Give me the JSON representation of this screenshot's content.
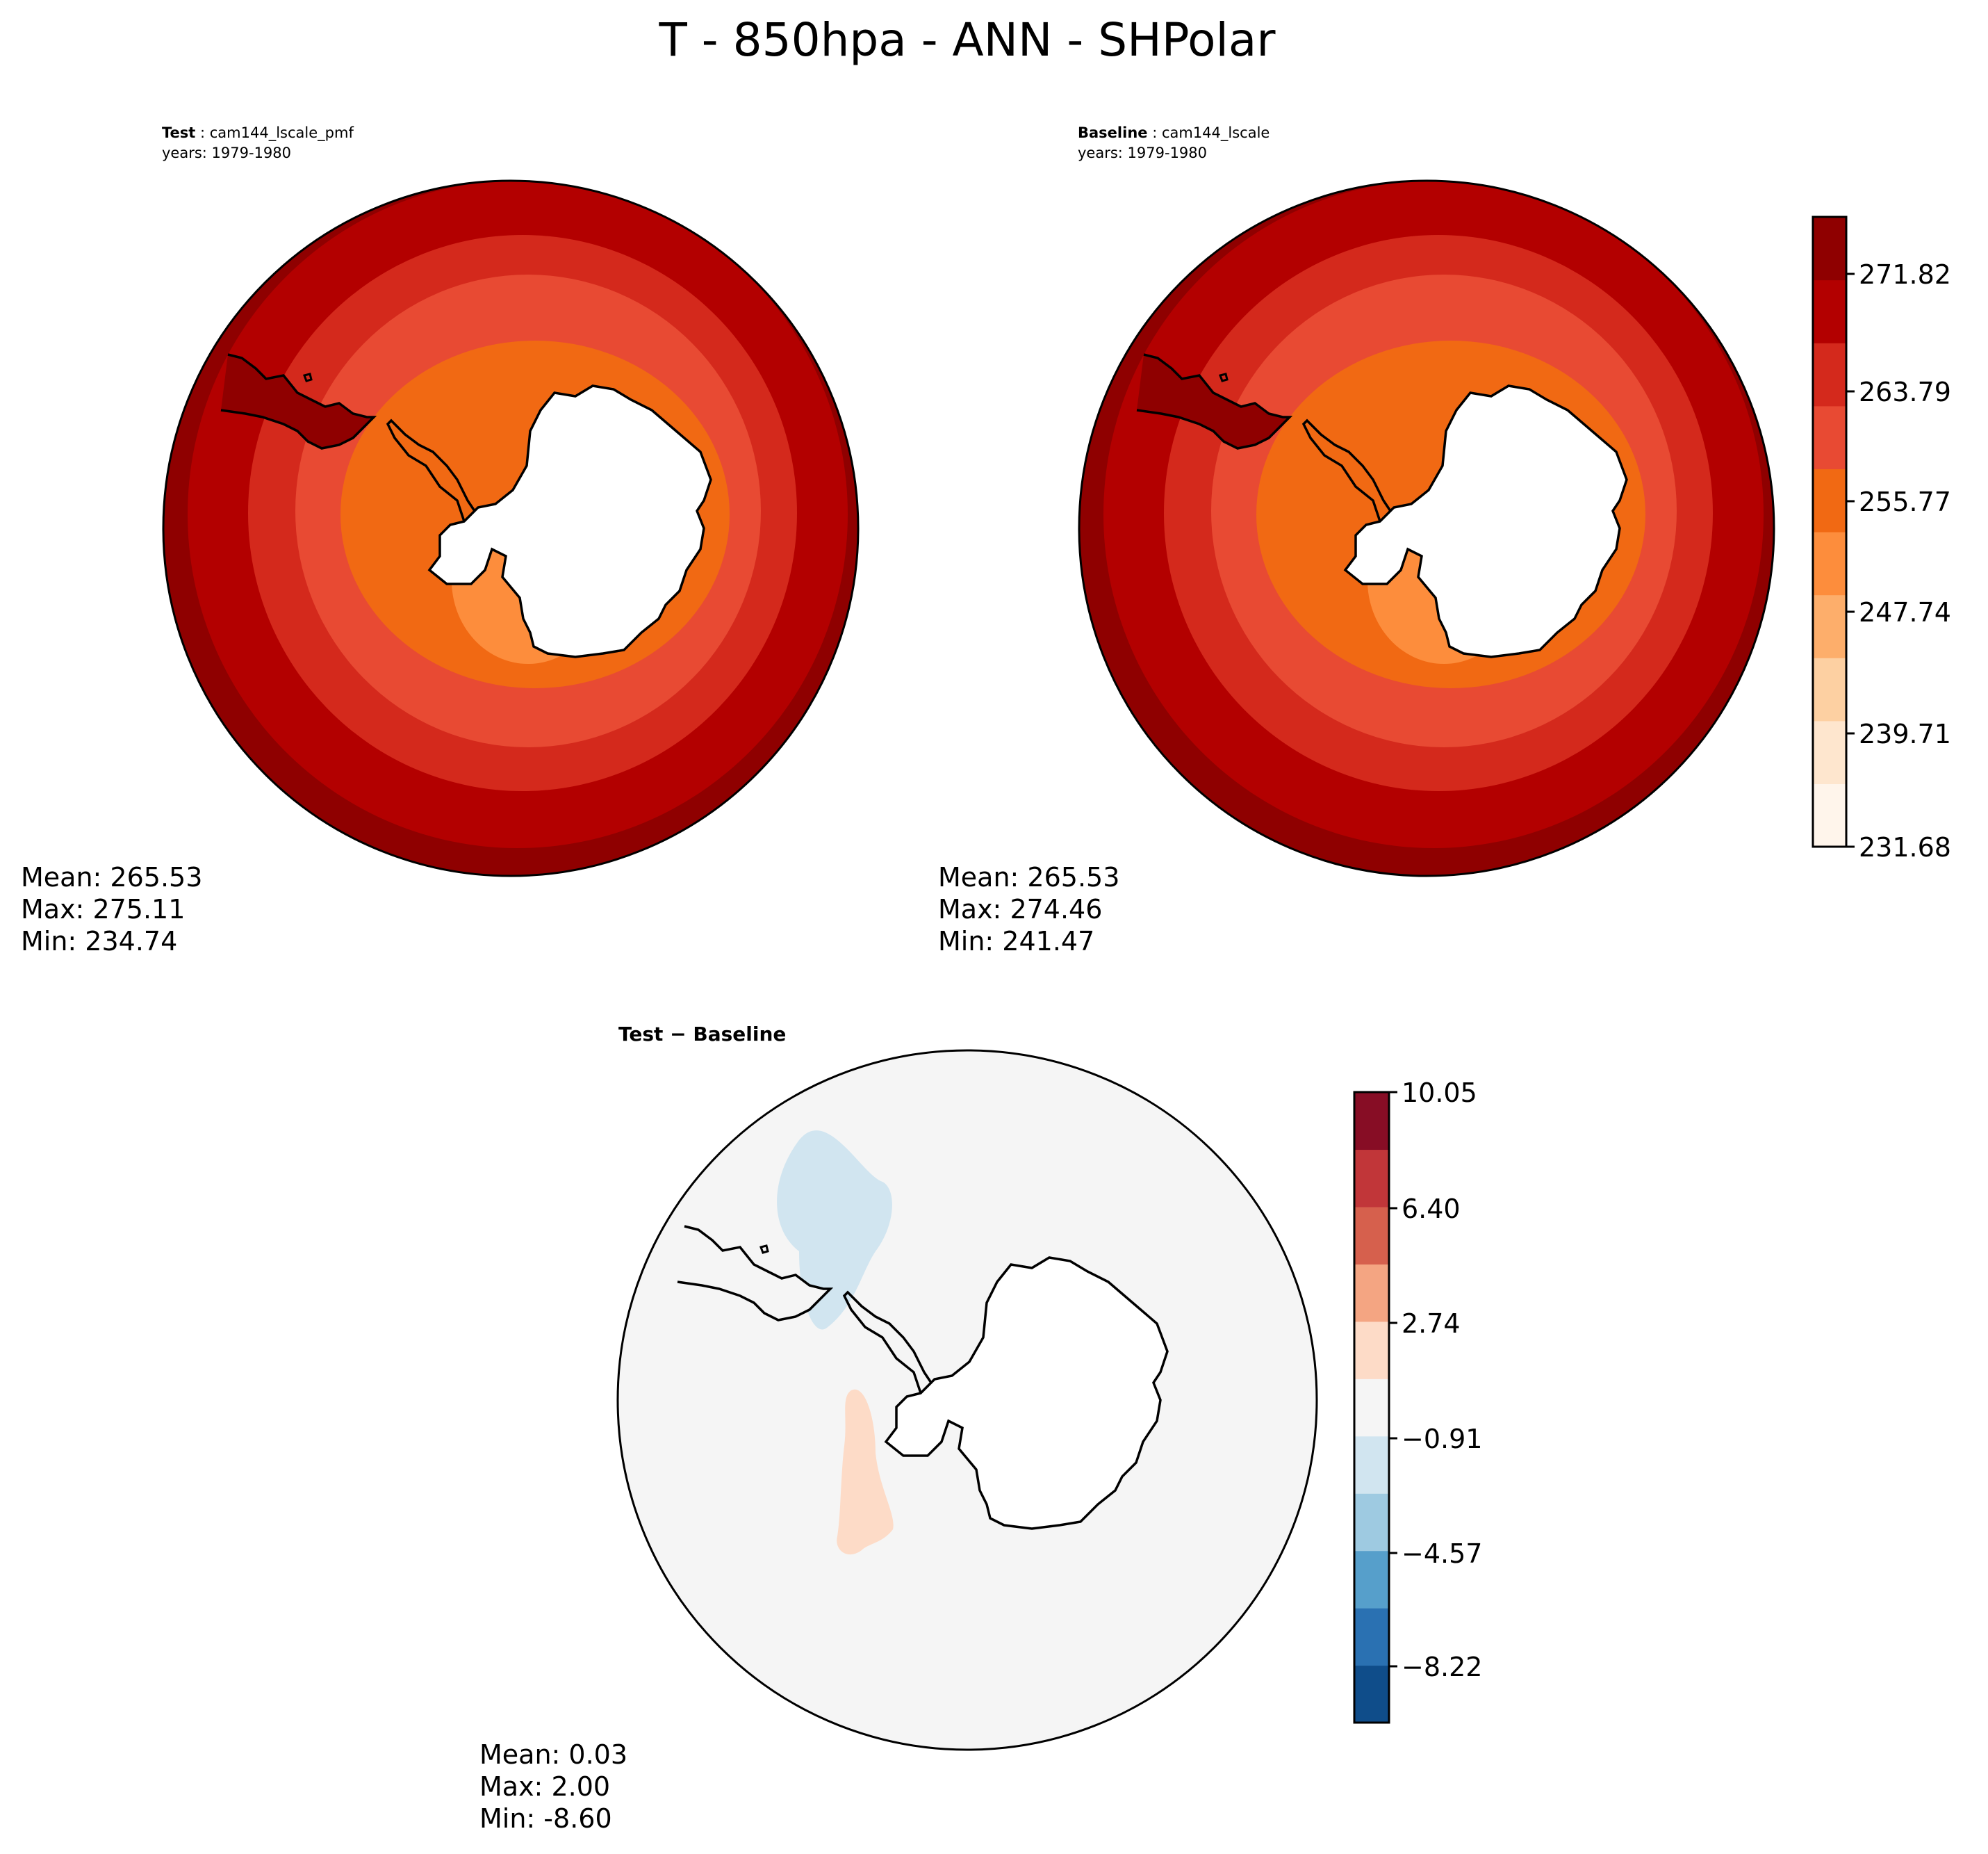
{
  "title": "T - 850hpa - ANN - SHPolar",
  "panels": {
    "test": {
      "label_bold": "Test",
      "label_sep": " : ",
      "label_value": "cam144_lscale_pmf",
      "years": "years: 1979-1980",
      "stats": {
        "mean": "Mean: 265.53",
        "max": "Max: 275.11",
        "min": "Min: 234.74"
      }
    },
    "baseline": {
      "label_bold": "Baseline",
      "label_sep": " : ",
      "label_value": "cam144_lscale",
      "years": "years: 1979-1980",
      "stats": {
        "mean": "Mean: 265.53",
        "max": "Max: 274.46",
        "min": "Min: 241.47"
      }
    },
    "diff": {
      "label": "Test − Baseline",
      "stats": {
        "mean": "Mean:  0.03",
        "max": "Max:  2.00",
        "min": "Min: -8.60"
      }
    }
  },
  "colorbars": {
    "temperature": {
      "ticks": [
        "271.82",
        "263.79",
        "255.77",
        "247.74",
        "239.71",
        "231.68"
      ],
      "colors": [
        "#fff5eb",
        "#fee6ce",
        "#fdd0a2",
        "#fdae6b",
        "#fd8d3c",
        "#f16913",
        "#e84a33",
        "#d4291c",
        "#b30000",
        "#8f0000"
      ]
    },
    "difference": {
      "ticks": [
        "10.05",
        "6.40",
        "2.74",
        "−0.91",
        "−4.57",
        "−8.22"
      ],
      "colors": [
        "#0f4d8a",
        "#2a71b2",
        "#569fcb",
        "#9ecae1",
        "#d1e5f0",
        "#f5f5f5",
        "#fddbc7",
        "#f4a582",
        "#d6604d",
        "#c13639",
        "#870d25"
      ]
    }
  }
}
